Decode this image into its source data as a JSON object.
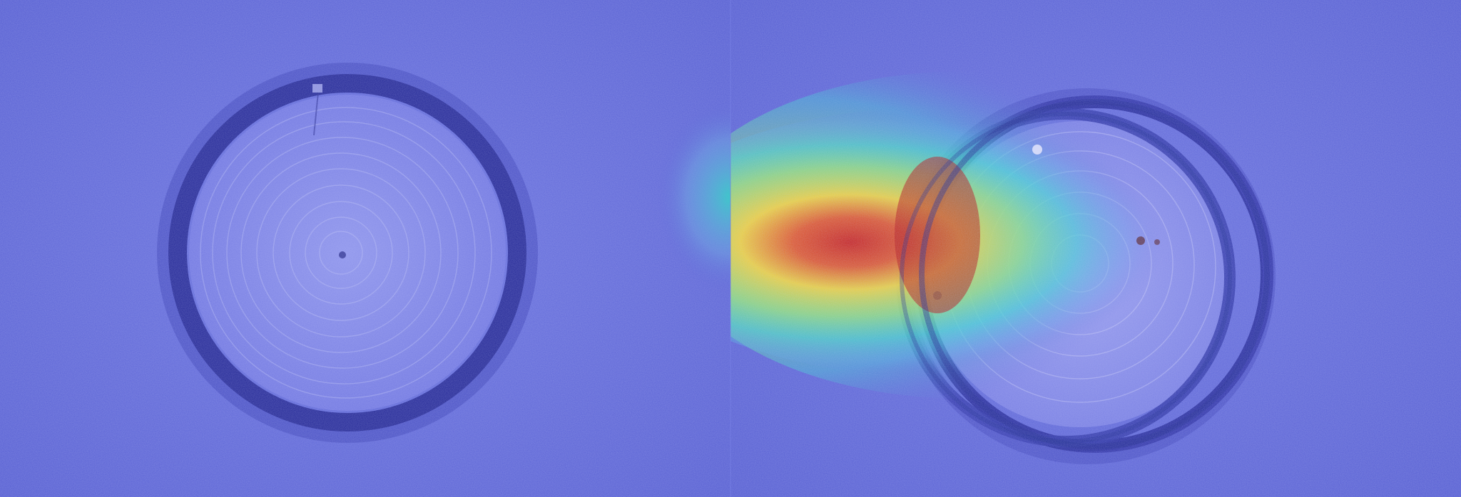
{
  "image": {
    "layout": "side-by-side",
    "panels": [
      {
        "role": "original",
        "subject": "circular-weld-spot",
        "colormap": "jet-overlay",
        "activation_present": false
      },
      {
        "role": "heatmap-overlay",
        "subject": "double-circular-weld-spot",
        "colormap": "jet-overlay",
        "activation_present": true
      }
    ],
    "colors": {
      "background": "#5d65d8",
      "ring": "#2a2fa0",
      "jet_red": "#c81e1e",
      "jet_yellow": "#f2d23a",
      "jet_cyan": "#39d6d0"
    }
  }
}
